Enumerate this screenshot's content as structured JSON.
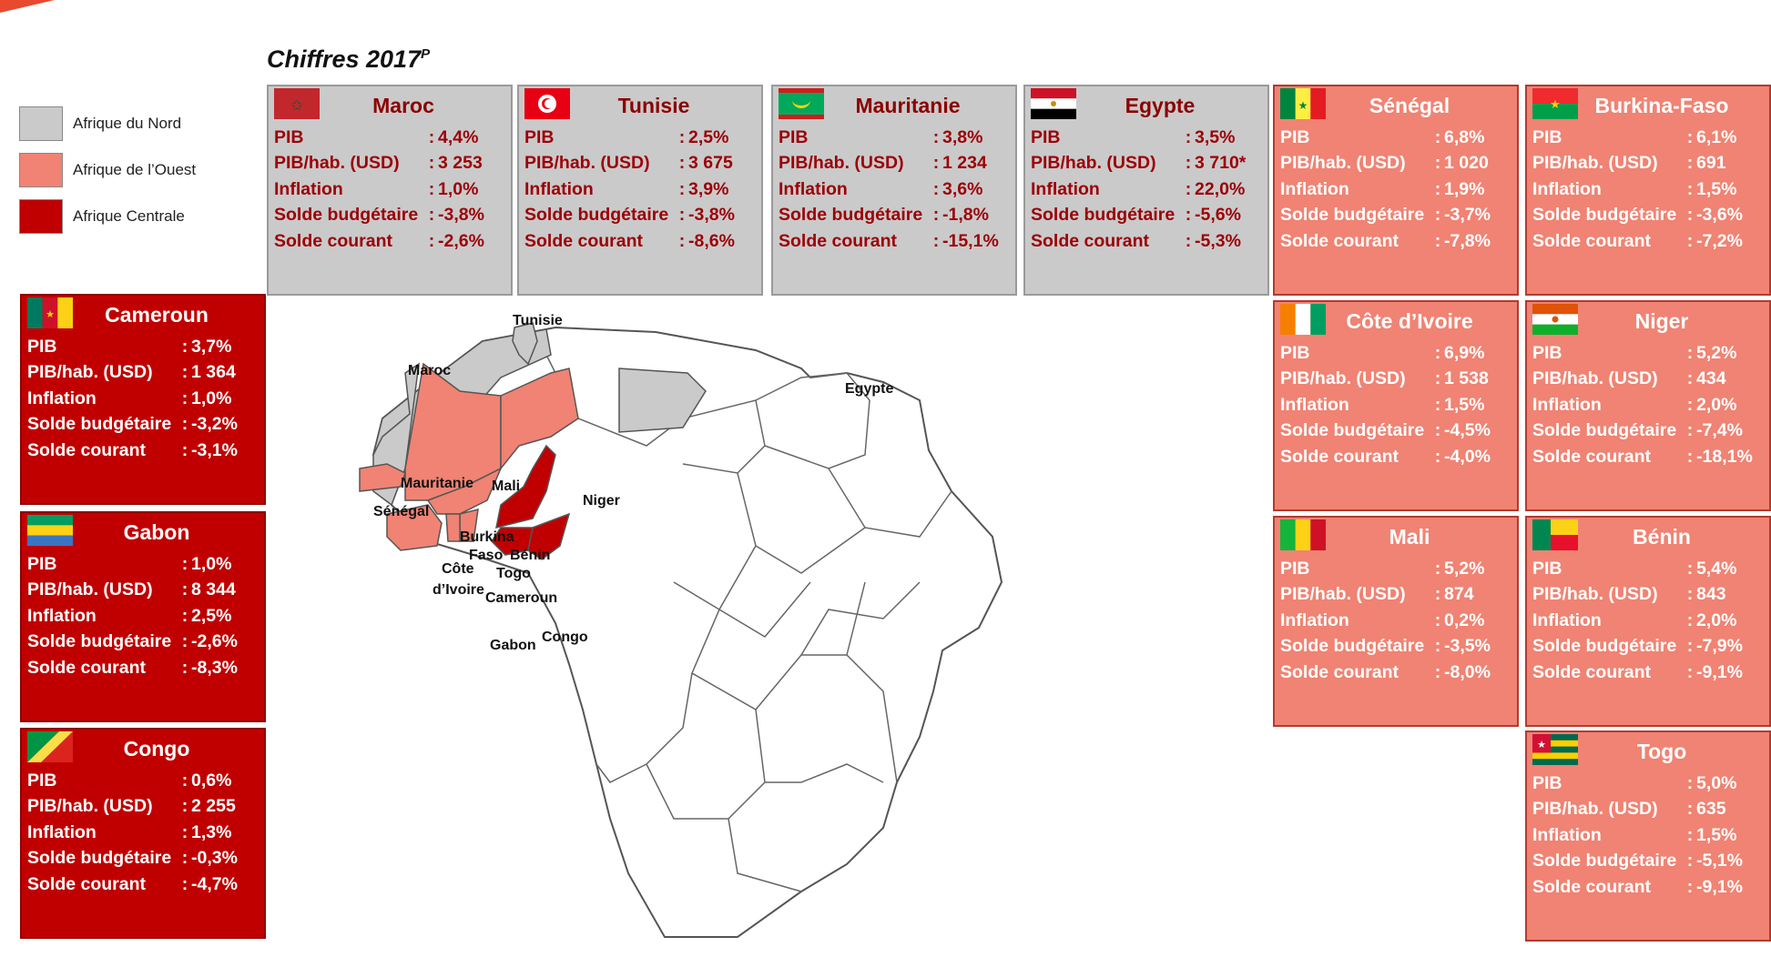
{
  "title": {
    "text": "Chiffres 2017",
    "sup": "P"
  },
  "legend": [
    {
      "label": "Afrique du Nord",
      "color": "#cacaca"
    },
    {
      "label": "Afrique de l’Ouest",
      "color": "#f08373"
    },
    {
      "label": "Afrique Centrale",
      "color": "#c00000"
    }
  ],
  "indicator_labels": {
    "pib": "PIB",
    "pib_hab": "PIB/hab. (USD)",
    "inflation": "Inflation",
    "solde_budgetaire": "Solde budgétaire",
    "solde_courant": "Solde courant",
    "separator": ":"
  },
  "countries": {
    "maroc": {
      "name": "Maroc",
      "pib": "4,4%",
      "pib_hab": "3 253",
      "inflation": "1,0%",
      "solde_budgetaire": "-3,8%",
      "solde_courant": "-2,6%"
    },
    "tunisie": {
      "name": "Tunisie",
      "pib": "2,5%",
      "pib_hab": "3 675",
      "inflation": "3,9%",
      "solde_budgetaire": "-3,8%",
      "solde_courant": "-8,6%"
    },
    "mauritanie": {
      "name": "Mauritanie",
      "pib": "3,8%",
      "pib_hab": "1 234",
      "inflation": "3,6%",
      "solde_budgetaire": "-1,8%",
      "solde_courant": "-15,1%"
    },
    "egypte": {
      "name": "Egypte",
      "pib": "3,5%",
      "pib_hab": "3 710*",
      "inflation": "22,0%",
      "solde_budgetaire": "-5,6%",
      "solde_courant": "-5,3%"
    },
    "senegal": {
      "name": "Sénégal",
      "pib": "6,8%",
      "pib_hab": "1 020",
      "inflation": "1,9%",
      "solde_budgetaire": "-3,7%",
      "solde_courant": "-7,8%"
    },
    "burkina": {
      "name": "Burkina-Faso",
      "pib": "6,1%",
      "pib_hab": "691",
      "inflation": "1,5%",
      "solde_budgetaire": "-3,6%",
      "solde_courant": "-7,2%"
    },
    "cote_ivoire": {
      "name": "Côte d’Ivoire",
      "pib": "6,9%",
      "pib_hab": "1 538",
      "inflation": "1,5%",
      "solde_budgetaire": "-4,5%",
      "solde_courant": "-4,0%"
    },
    "niger": {
      "name": "Niger",
      "pib": "5,2%",
      "pib_hab": "434",
      "inflation": "2,0%",
      "solde_budgetaire": "-7,4%",
      "solde_courant": "-18,1%"
    },
    "mali": {
      "name": "Mali",
      "pib": "5,2%",
      "pib_hab": "874",
      "inflation": "0,2%",
      "solde_budgetaire": "-3,5%",
      "solde_courant": "-8,0%"
    },
    "benin": {
      "name": "Bénin",
      "pib": "5,4%",
      "pib_hab": "843",
      "inflation": "2,0%",
      "solde_budgetaire": "-7,9%",
      "solde_courant": "-9,1%"
    },
    "togo": {
      "name": "Togo",
      "pib": "5,0%",
      "pib_hab": "635",
      "inflation": "1,5%",
      "solde_budgetaire": "-5,1%",
      "solde_courant": "-9,1%"
    },
    "cameroun": {
      "name": "Cameroun",
      "pib": "3,7%",
      "pib_hab": "1 364",
      "inflation": "1,0%",
      "solde_budgetaire": "-3,2%",
      "solde_courant": "-3,1%"
    },
    "gabon": {
      "name": "Gabon",
      "pib": "1,0%",
      "pib_hab": "8 344",
      "inflation": "2,5%",
      "solde_budgetaire": "-2,6%",
      "solde_courant": "-8,3%"
    },
    "congo": {
      "name": "Congo",
      "pib": "0,6%",
      "pib_hab": "2 255",
      "inflation": "1,3%",
      "solde_budgetaire": "-0,3%",
      "solde_courant": "-4,7%"
    }
  },
  "map_labels": {
    "tunisie": "Tunisie",
    "maroc": "Maroc",
    "egypte": "Egypte",
    "mauritanie": "Mauritanie",
    "mali": "Mali",
    "niger": "Niger",
    "senegal": "Sénégal",
    "burkina_1": "Burkina",
    "burkina_2": "Faso",
    "benin": "Bénin",
    "cote_1": "Côte",
    "cote_2": "d’Ivoire",
    "togo": "Togo",
    "cameroun": "Cameroun",
    "congo": "Congo",
    "gabon": "Gabon"
  },
  "colors": {
    "north": "#cacaca",
    "west": "#f08373",
    "central": "#c00000",
    "map_border": "#555555",
    "accent_red": "#e8492f"
  }
}
